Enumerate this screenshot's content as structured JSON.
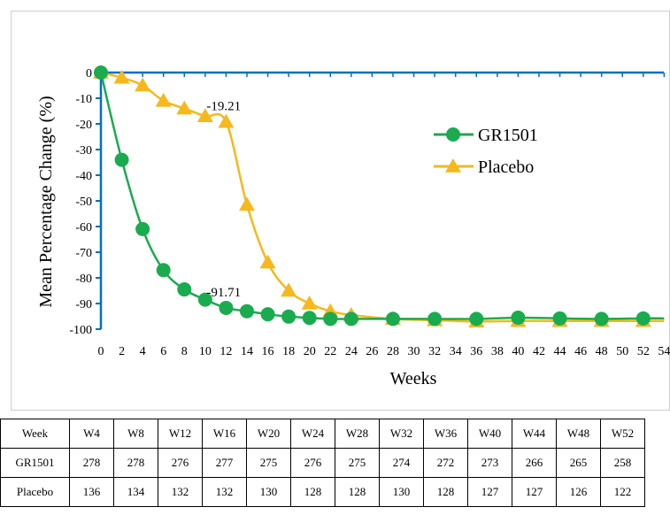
{
  "chart_data": {
    "type": "line",
    "title": "",
    "xlabel": "Weeks",
    "ylabel": "Mean Percentage Change (%)",
    "xlim": [
      0,
      54
    ],
    "ylim": [
      -100,
      0
    ],
    "x_ticks": [
      "0",
      "2",
      "4",
      "6",
      "8",
      "10",
      "12",
      "14",
      "16",
      "18",
      "20",
      "22",
      "24",
      "26",
      "28",
      "30",
      "32",
      "34",
      "36",
      "38",
      "40",
      "42",
      "44",
      "46",
      "48",
      "50",
      "52",
      "54"
    ],
    "y_ticks": [
      "0",
      "-10",
      "-20",
      "-30",
      "-40",
      "-50",
      "-60",
      "-70",
      "-80",
      "-90",
      "-100"
    ],
    "legend_position": "right",
    "series": [
      {
        "name": "GR1501",
        "color": "#1aab4f",
        "marker": "circle",
        "x": [
          0,
          2,
          4,
          6,
          8,
          10,
          12,
          14,
          16,
          18,
          20,
          22,
          24,
          28,
          32,
          36,
          40,
          44,
          48,
          52,
          54
        ],
        "y": [
          0,
          -34,
          -61,
          -77,
          -84.5,
          -88.5,
          -91.71,
          -93,
          -94.2,
          -95.1,
          -95.6,
          -96,
          -96,
          -96,
          -96,
          -96,
          -95.5,
          -95.8,
          -96,
          -95.8,
          -95.8
        ]
      },
      {
        "name": "Placebo",
        "color": "#f6b81c",
        "marker": "triangle",
        "x": [
          0,
          2,
          4,
          6,
          8,
          10,
          12,
          14,
          16,
          18,
          20,
          22,
          24,
          28,
          32,
          36,
          40,
          44,
          48,
          52,
          54
        ],
        "y": [
          0,
          -2,
          -5,
          -11,
          -14,
          -17,
          -19.21,
          -51.5,
          -74,
          -85,
          -90,
          -93,
          -94.5,
          -96,
          -96.5,
          -97,
          -96.8,
          -96.8,
          -96.8,
          -96.8,
          -96.8
        ]
      }
    ],
    "annotations": [
      {
        "text": "-19.21",
        "x": 12,
        "y": -19.21
      },
      {
        "text": "-91.71",
        "x": 12,
        "y": -91.71
      }
    ]
  },
  "table": {
    "header": [
      "Week",
      "W4",
      "W8",
      "W12",
      "W16",
      "W20",
      "W24",
      "W28",
      "W32",
      "W36",
      "W40",
      "W44",
      "W48",
      "W52"
    ],
    "rows": [
      [
        "GR1501",
        "278",
        "278",
        "276",
        "277",
        "275",
        "276",
        "275",
        "274",
        "272",
        "273",
        "266",
        "265",
        "258"
      ],
      [
        "Placebo",
        "136",
        "134",
        "132",
        "132",
        "130",
        "128",
        "128",
        "130",
        "128",
        "127",
        "127",
        "126",
        "122"
      ]
    ]
  }
}
